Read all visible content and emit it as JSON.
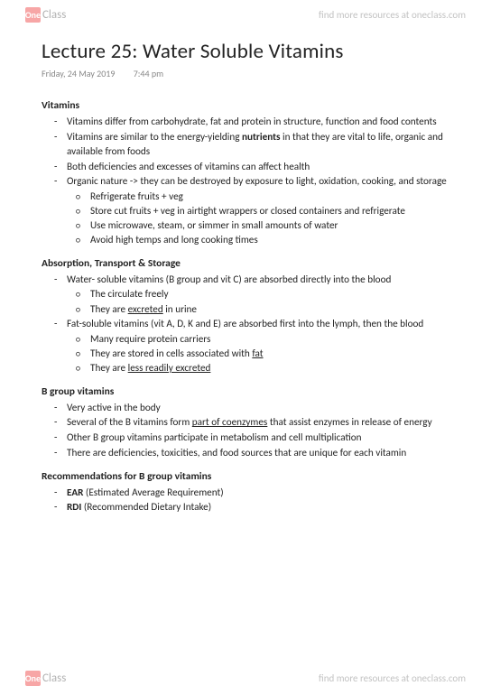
{
  "watermark": {
    "logo_one": "One",
    "logo_class": "Class",
    "tagline": "find more resources at oneclass.com"
  },
  "title": "Lecture 25: Water Soluble Vitamins",
  "date": "Friday, 24 May 2019",
  "time": "7:44 pm",
  "sections": [
    {
      "heading": "Vitamins",
      "items": [
        {
          "pre": "Vitamins differ from carbohydrate, fat and protein in structure, function and food contents"
        },
        {
          "pre": "Vitamins are similar to the energy-yielding ",
          "bold": "nutrients",
          "post": " in that they are vital to life, organic and available from foods"
        },
        {
          "pre": "Both deficiencies and excesses of vitamins can affect health"
        },
        {
          "pre": "Organic nature -> they can be destroyed by exposure to light, oxidation, cooking, and storage",
          "sub": [
            "Refrigerate fruits + veg",
            "Store cut fruits + veg in airtight wrappers or closed containers and refrigerate",
            "Use microwave, steam, or simmer in small amounts of water",
            "Avoid high temps and long cooking times"
          ]
        }
      ]
    },
    {
      "heading": "Absorption, Transport & Storage",
      "items": [
        {
          "pre": "Water- soluble vitamins (B group and vit C) are absorbed directly into the blood",
          "sub_rich": [
            {
              "pre": "The circulate freely"
            },
            {
              "pre": "They are ",
              "u": "excreted",
              "post": " in urine"
            }
          ]
        },
        {
          "pre": "Fat-soluble vitamins (vit A, D, K and E) are absorbed first into the lymph, then the blood",
          "sub_rich": [
            {
              "pre": "Many require protein carriers"
            },
            {
              "pre": "They are stored in cells associated with ",
              "u": "fat"
            },
            {
              "pre": "They are ",
              "u": "less readily excreted"
            }
          ]
        }
      ]
    },
    {
      "heading": "B group vitamins",
      "items": [
        {
          "pre": "Very active in the body"
        },
        {
          "pre": "Several of the B vitamins form ",
          "u": "part of coenzymes",
          "post": " that assist enzymes in release of energy"
        },
        {
          "pre": "Other B group vitamins participate in metabolism and cell multiplication"
        },
        {
          "pre": "There are deficiencies, toxicities, and food sources that are unique for each vitamin"
        }
      ]
    },
    {
      "heading": "Recommendations for B group vitamins",
      "items": [
        {
          "bold": "EAR",
          "post": " (Estimated Average Requirement)"
        },
        {
          "bold": "RDI",
          "post": " (Recommended Dietary Intake)"
        }
      ]
    }
  ]
}
